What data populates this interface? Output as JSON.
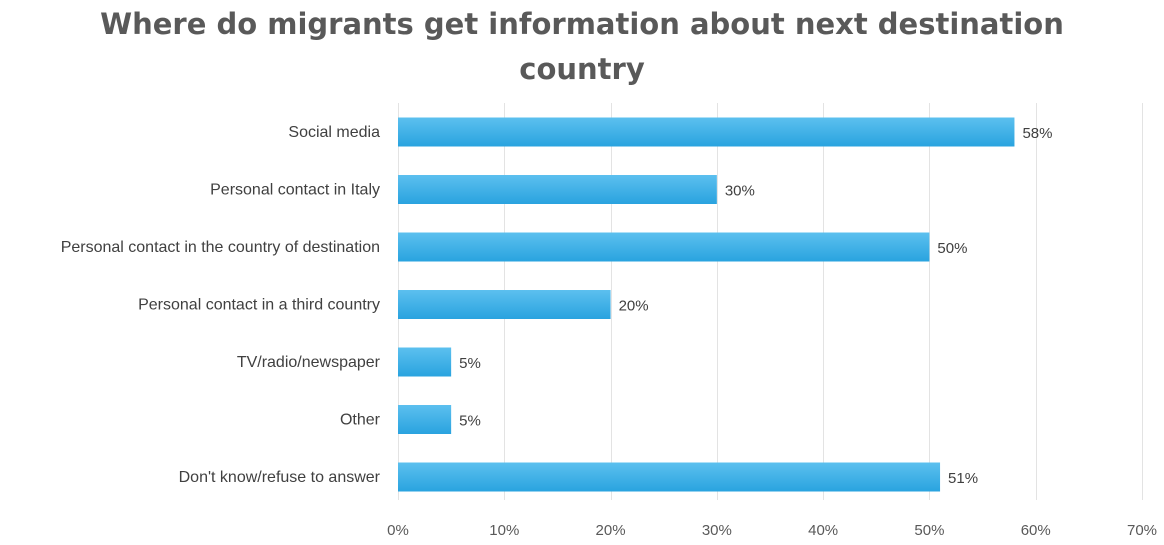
{
  "chart_data": {
    "type": "bar",
    "orientation": "horizontal",
    "title": "Where do migrants get information about next destination country",
    "title_lines": [
      "Where do migrants get information about next destination",
      "country"
    ],
    "categories": [
      "Social media",
      "Personal contact in Italy",
      "Personal contact in the country of destination",
      "Personal contact in a third country",
      "TV/radio/newspaper",
      "Other",
      "Don't know/refuse to answer"
    ],
    "values": [
      58,
      30,
      50,
      20,
      5,
      5,
      51
    ],
    "value_labels": [
      "58%",
      "30%",
      "50%",
      "20%",
      "5%",
      "5%",
      "51%"
    ],
    "xlim": [
      0,
      70
    ],
    "xticks": [
      0,
      10,
      20,
      30,
      40,
      50,
      60,
      70
    ],
    "xtick_labels": [
      "0%",
      "10%",
      "20%",
      "30%",
      "40%",
      "50%",
      "60%",
      "70%"
    ],
    "xlabel": "",
    "ylabel": "",
    "grid": "vertical",
    "legend": "none",
    "bar_color": "#29a3df",
    "bar_color_light": "#5cc0ef"
  }
}
